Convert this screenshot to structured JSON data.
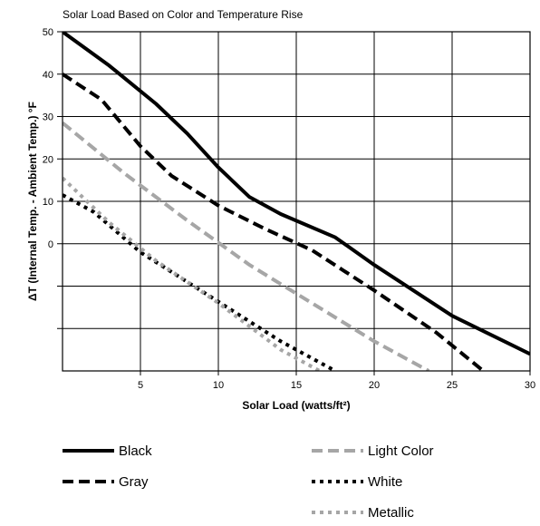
{
  "chart_data": {
    "type": "line",
    "title": "Solar Load Based on Color and Temperature Rise",
    "xlabel": "Solar Load (watts/ft²)",
    "ylabel": "ΔT (Internal Temp. - Ambient Temp.) °F",
    "xlim": [
      0,
      30
    ],
    "ylim": [
      -30,
      50
    ],
    "x_ticks": [
      5,
      10,
      15,
      20,
      25,
      30
    ],
    "x_tick_labels": [
      "5",
      "10",
      "15",
      "20",
      "25",
      "30"
    ],
    "y_ticks": [
      50,
      40,
      30,
      20,
      10,
      0
    ],
    "y_tick_labels": [
      "50",
      "40",
      "30",
      "20",
      "10",
      "0"
    ],
    "y_gridlines": [
      50,
      40,
      30,
      20,
      10,
      0,
      -10,
      -20
    ],
    "grid": true,
    "legend_position": "bottom",
    "series": [
      {
        "name": "Black",
        "color": "#000000",
        "style": "solid",
        "x": [
          0,
          3,
          6,
          8,
          10,
          12,
          14,
          17.5,
          20,
          25,
          30
        ],
        "y": [
          50,
          42,
          33,
          26,
          18,
          11,
          7,
          1.5,
          -5,
          -17,
          -26
        ]
      },
      {
        "name": "Gray",
        "color": "#000000",
        "style": "dashed",
        "x": [
          0,
          2.5,
          5,
          7,
          10,
          13,
          16,
          20,
          24,
          27
        ],
        "y": [
          40,
          34,
          23,
          16,
          9,
          3.5,
          -1.5,
          -11,
          -21,
          -30
        ]
      },
      {
        "name": "Light Color",
        "color": "#a6a6a6",
        "style": "dashed",
        "x": [
          0,
          4,
          8,
          12,
          16,
          20,
          23.5
        ],
        "y": [
          28.5,
          16.5,
          5.5,
          -5,
          -14,
          -23,
          -30
        ]
      },
      {
        "name": "White",
        "color": "#000000",
        "style": "dotted",
        "x": [
          0,
          2,
          5,
          8,
          11,
          14,
          17.5
        ],
        "y": [
          11.5,
          7.5,
          -2,
          -9,
          -16,
          -23,
          -30
        ]
      },
      {
        "name": "Metallic",
        "color": "#a6a6a6",
        "style": "dotted",
        "x": [
          0,
          3,
          6,
          10,
          14,
          16.5
        ],
        "y": [
          15.5,
          5,
          -4,
          -14,
          -25,
          -30
        ]
      }
    ]
  }
}
